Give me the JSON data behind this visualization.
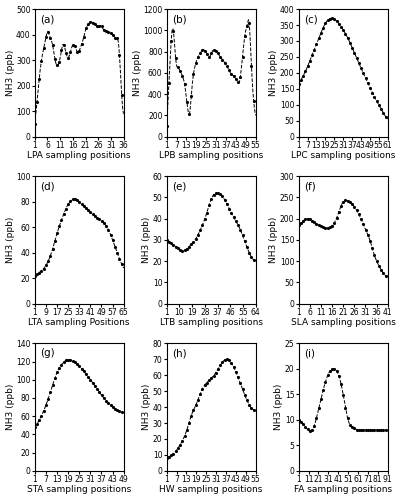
{
  "subplots": [
    {
      "label": "(a)",
      "xlabel": "LPA sampling positions",
      "ylabel": "NH3 (ppb)",
      "ylim": [
        0,
        500
      ],
      "yticks": [
        0,
        100,
        200,
        300,
        400,
        500
      ],
      "xticks": [
        1,
        6,
        11,
        16,
        21,
        26,
        31,
        36
      ],
      "x_start": 1,
      "x_end": 36,
      "curve_x": [
        1,
        2,
        3,
        4,
        5,
        6,
        7,
        8,
        9,
        10,
        11,
        12,
        13,
        14,
        15,
        16,
        17,
        18,
        19,
        20,
        21,
        22,
        23,
        24,
        25,
        26,
        27,
        28,
        29,
        30,
        31,
        32,
        33,
        34,
        35,
        36
      ],
      "curve_y": [
        50,
        150,
        250,
        320,
        370,
        410,
        390,
        360,
        300,
        280,
        310,
        360,
        340,
        310,
        330,
        360,
        350,
        330,
        350,
        380,
        420,
        440,
        450,
        445,
        440,
        430,
        435,
        420,
        415,
        410,
        405,
        395,
        385,
        360,
        200,
        90
      ]
    },
    {
      "label": "(b)",
      "xlabel": "LPB sampling positions",
      "ylabel": "NH3 (ppb)",
      "ylim": [
        0,
        1200
      ],
      "yticks": [
        0,
        200,
        400,
        600,
        800,
        1000,
        1200
      ],
      "xticks": [
        1,
        7,
        13,
        19,
        25,
        31,
        37,
        43,
        49,
        55
      ],
      "x_start": 1,
      "x_end": 55,
      "curve_x": [
        1,
        2,
        3,
        4,
        5,
        6,
        7,
        8,
        9,
        10,
        11,
        12,
        13,
        14,
        15,
        16,
        17,
        18,
        19,
        20,
        21,
        22,
        23,
        24,
        25,
        26,
        27,
        28,
        29,
        30,
        31,
        32,
        33,
        34,
        35,
        36,
        37,
        38,
        39,
        40,
        41,
        42,
        43,
        44,
        45,
        46,
        47,
        48,
        49,
        50,
        51,
        52,
        53,
        54,
        55
      ],
      "curve_y": [
        100,
        400,
        700,
        960,
        1000,
        820,
        670,
        650,
        620,
        590,
        550,
        480,
        350,
        240,
        230,
        400,
        560,
        650,
        710,
        750,
        780,
        800,
        820,
        810,
        790,
        760,
        750,
        780,
        810,
        820,
        800,
        790,
        760,
        740,
        720,
        700,
        680,
        650,
        620,
        590,
        580,
        560,
        540,
        520,
        510,
        600,
        750,
        900,
        1000,
        1060,
        1080,
        800,
        500,
        300,
        200
      ]
    },
    {
      "label": "(c)",
      "xlabel": "LPC sampling positions",
      "ylabel": "NH3 (ppb)",
      "ylim": [
        0,
        400
      ],
      "yticks": [
        0,
        50,
        100,
        150,
        200,
        250,
        300,
        350,
        400
      ],
      "xticks": [
        1,
        7,
        13,
        19,
        25,
        31,
        37,
        43,
        49,
        55,
        61
      ],
      "x_start": 1,
      "x_end": 61,
      "curve_x": [
        1,
        4,
        7,
        10,
        13,
        16,
        19,
        22,
        25,
        28,
        31,
        34,
        37,
        40,
        43,
        46,
        49,
        52,
        55,
        58,
        61
      ],
      "curve_y": [
        165,
        190,
        220,
        255,
        290,
        325,
        355,
        370,
        368,
        355,
        335,
        310,
        280,
        248,
        215,
        185,
        155,
        125,
        100,
        75,
        55
      ]
    },
    {
      "label": "(d)",
      "xlabel": "LTA sampling Positions",
      "ylabel": "NH3 (ppb)",
      "ylim": [
        0,
        100
      ],
      "yticks": [
        0,
        20,
        40,
        60,
        80,
        100
      ],
      "xticks": [
        1,
        9,
        17,
        25,
        33,
        41,
        49,
        57,
        65
      ],
      "x_start": 1,
      "x_end": 65,
      "curve_x": [
        1,
        5,
        9,
        13,
        17,
        21,
        25,
        29,
        33,
        37,
        41,
        45,
        49,
        53,
        57,
        61,
        65
      ],
      "curve_y": [
        22,
        25,
        30,
        40,
        55,
        68,
        78,
        82,
        80,
        76,
        72,
        68,
        65,
        60,
        50,
        38,
        28
      ]
    },
    {
      "label": "(e)",
      "xlabel": "LTB sampling positions",
      "ylabel": "NH3 (ppb)",
      "ylim": [
        0,
        60
      ],
      "yticks": [
        0,
        10,
        20,
        30,
        40,
        50,
        60
      ],
      "xticks": [
        1,
        10,
        19,
        28,
        37,
        46,
        55,
        64
      ],
      "x_start": 1,
      "x_end": 64,
      "curve_x": [
        1,
        5,
        9,
        13,
        17,
        21,
        25,
        29,
        33,
        37,
        41,
        45,
        49,
        53,
        57,
        61,
        64
      ],
      "curve_y": [
        30,
        28,
        26,
        25,
        27,
        30,
        35,
        42,
        50,
        52,
        50,
        45,
        40,
        35,
        28,
        22,
        20
      ]
    },
    {
      "label": "(f)",
      "xlabel": "SLA sampling positions",
      "ylabel": "NH3 (ppb)",
      "ylim": [
        0,
        300
      ],
      "yticks": [
        0,
        50,
        100,
        150,
        200,
        250,
        300
      ],
      "xticks": [
        1,
        6,
        11,
        16,
        21,
        26,
        31,
        36,
        41
      ],
      "x_start": 1,
      "x_end": 41,
      "curve_x": [
        1,
        3,
        5,
        7,
        9,
        11,
        13,
        15,
        17,
        19,
        21,
        23,
        25,
        27,
        29,
        31,
        33,
        35,
        37,
        39,
        41
      ],
      "curve_y": [
        185,
        195,
        200,
        195,
        188,
        183,
        178,
        180,
        190,
        215,
        240,
        242,
        235,
        220,
        200,
        175,
        150,
        115,
        90,
        72,
        65
      ]
    },
    {
      "label": "(g)",
      "xlabel": "STA sampling positions",
      "ylabel": "NH3 (ppb)",
      "ylim": [
        0,
        140
      ],
      "yticks": [
        0,
        20,
        40,
        60,
        80,
        100,
        120,
        140
      ],
      "xticks": [
        1,
        7,
        13,
        19,
        25,
        31,
        37,
        43,
        49
      ],
      "x_start": 1,
      "x_end": 49,
      "curve_x": [
        1,
        4,
        7,
        10,
        13,
        16,
        19,
        22,
        25,
        28,
        31,
        34,
        37,
        40,
        43,
        46,
        49
      ],
      "curve_y": [
        48,
        58,
        72,
        90,
        108,
        118,
        122,
        120,
        115,
        108,
        100,
        92,
        83,
        76,
        70,
        66,
        64
      ]
    },
    {
      "label": "(h)",
      "xlabel": "HW sampling positions",
      "ylabel": "NH3 (ppb)",
      "ylim": [
        0,
        80
      ],
      "yticks": [
        0,
        10,
        20,
        30,
        40,
        50,
        60,
        70,
        80
      ],
      "xticks": [
        1,
        7,
        13,
        19,
        25,
        31,
        37,
        43,
        49,
        55
      ],
      "x_start": 1,
      "x_end": 55,
      "curve_x": [
        1,
        4,
        7,
        10,
        13,
        16,
        19,
        22,
        25,
        28,
        31,
        34,
        37,
        40,
        43,
        46,
        49,
        52,
        55
      ],
      "curve_y": [
        8,
        10,
        13,
        18,
        25,
        35,
        42,
        50,
        55,
        58,
        62,
        67,
        70,
        68,
        62,
        54,
        46,
        40,
        38
      ]
    },
    {
      "label": "(i)",
      "xlabel": "FA sampling positions",
      "ylabel": "NH3 (ppb)",
      "ylim": [
        0,
        25
      ],
      "yticks": [
        0,
        5,
        10,
        15,
        20,
        25
      ],
      "xticks": [
        1,
        11,
        21,
        31,
        41,
        51,
        61,
        71,
        81,
        91
      ],
      "x_start": 1,
      "x_end": 91,
      "curve_x": [
        1,
        6,
        11,
        16,
        21,
        26,
        31,
        36,
        41,
        46,
        51,
        56,
        61,
        66,
        71,
        76,
        81,
        86,
        91
      ],
      "curve_y": [
        10,
        9,
        8,
        8.5,
        12,
        16,
        19,
        20,
        19,
        15,
        10,
        8.5,
        8,
        8,
        8,
        8,
        8,
        8,
        8
      ]
    }
  ],
  "line_color": "#000000",
  "line_style": "--",
  "marker": ".",
  "marker_size": 2.5,
  "line_width": 0.7,
  "fig_bg": "#ffffff",
  "label_fontsize": 6.5,
  "tick_fontsize": 5.5,
  "panel_label_fontsize": 7.5
}
